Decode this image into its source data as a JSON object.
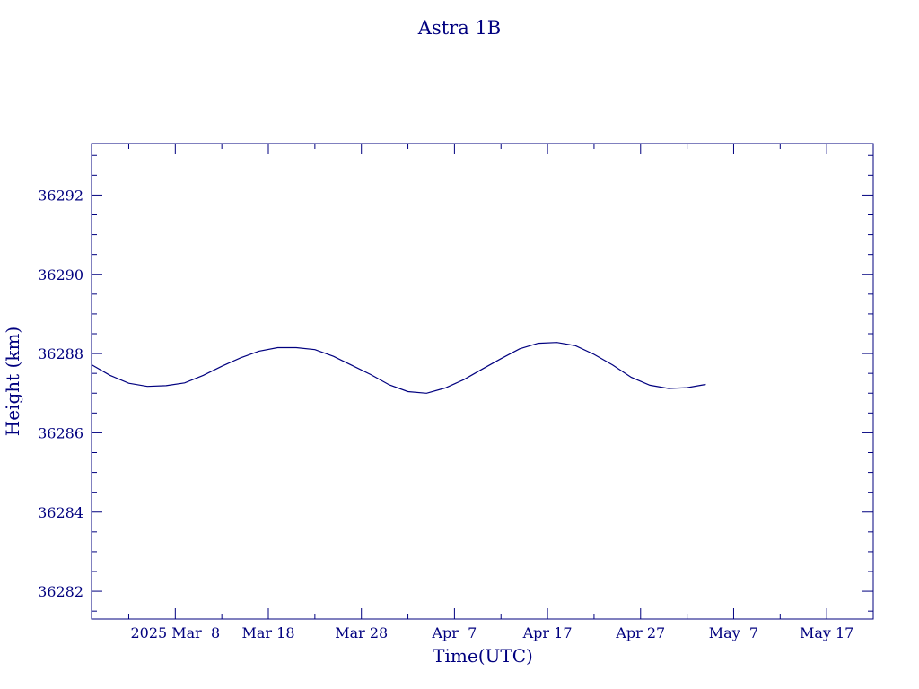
{
  "chart_data": {
    "type": "line",
    "title": "Astra 1B",
    "xlabel": "Time(UTC)",
    "ylabel": "Height (km)",
    "x_tick_labels": [
      "2025 Mar  8",
      "Mar 18",
      "Mar 28",
      "Apr  7",
      "Apr 17",
      "Apr 27",
      "May  7",
      "May 17"
    ],
    "y_tick_labels": [
      "36282",
      "36284",
      "36286",
      "36288",
      "36290",
      "36292"
    ],
    "xlim": [
      "2025-02-27",
      "2025-05-22"
    ],
    "ylim": [
      36281.3,
      36293.3
    ],
    "grid": false,
    "series": [
      {
        "x": [
          "2025-02-27",
          "2025-03-01",
          "2025-03-03",
          "2025-03-05",
          "2025-03-07",
          "2025-03-09",
          "2025-03-11",
          "2025-03-13",
          "2025-03-15",
          "2025-03-17",
          "2025-03-19",
          "2025-03-21",
          "2025-03-23",
          "2025-03-25",
          "2025-03-27",
          "2025-03-29",
          "2025-03-31",
          "2025-04-02",
          "2025-04-04",
          "2025-04-06",
          "2025-04-08",
          "2025-04-10",
          "2025-04-12",
          "2025-04-14",
          "2025-04-16",
          "2025-04-18",
          "2025-04-20",
          "2025-04-22",
          "2025-04-24",
          "2025-04-26",
          "2025-04-28",
          "2025-04-30",
          "2025-05-02",
          "2025-05-04"
        ],
        "values": [
          36287.72,
          36287.45,
          36287.25,
          36287.17,
          36287.19,
          36287.26,
          36287.45,
          36287.68,
          36287.89,
          36288.06,
          36288.15,
          36288.15,
          36288.1,
          36287.93,
          36287.7,
          36287.47,
          36287.21,
          36287.04,
          36287.0,
          36287.13,
          36287.34,
          36287.61,
          36287.87,
          36288.12,
          36288.26,
          36288.28,
          36288.2,
          36287.98,
          36287.71,
          36287.4,
          36287.2,
          36287.12,
          36287.14,
          36287.22
        ]
      }
    ]
  },
  "colors": {
    "ink": "#00007f",
    "background": "#ffffff"
  }
}
